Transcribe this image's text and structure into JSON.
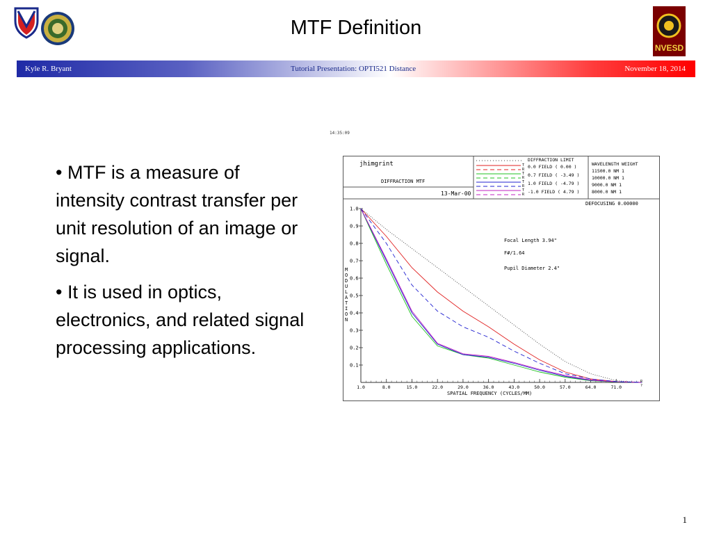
{
  "slide": {
    "title": "MTF Definition",
    "banner": {
      "left": "Kyle R. Bryant",
      "center": "Tutorial Presentation:  OPTI521 Distance",
      "right": "November 18, 2014"
    },
    "bullets": [
      "• MTF is a measure of intensity contrast transfer per unit resolution of an image or signal.",
      "• It is used in optics, electronics, and related signal processing applications."
    ],
    "page_number": "1",
    "logos": {
      "left_shield": "shield-logo",
      "left_seal": "seal-logo",
      "right": "NVESD"
    },
    "colors": {
      "banner_blue": "#1f2aa6",
      "banner_red": "#ff0000"
    }
  },
  "mtf_plot": {
    "timestamp": "14:35:09",
    "name": "jhimgrint",
    "subtitle": "DIFFRACTION MTF",
    "date": "13-Mar-00",
    "legend": {
      "diffraction_limit": "DIFFRACTION LIMIT",
      "entries": [
        {
          "field": "0.0  FIELD (  0.00 )",
          "color": "#e02020"
        },
        {
          "field": "0.7  FIELD ( -3.49 )",
          "color": "#20c020"
        },
        {
          "field": "1.0  FIELD ( -4.79 )",
          "color": "#2020d0"
        },
        {
          "field": "-1.0 FIELD (  4.79 )",
          "color": "#c020c0"
        }
      ],
      "tr_letters": [
        "T",
        "R"
      ]
    },
    "wavelength_table": {
      "header": "WAVELENGTH  WEIGHT",
      "rows": [
        "11500.0 NM       1",
        "10000.0 NM       1",
        "9000.0 NM       1",
        "8000.0 NM       1"
      ]
    },
    "defocusing": "DEFOCUSING  0.00000",
    "annotations": [
      "Focal Length 3.94\"",
      "F#/1.64",
      "Pupil Diameter 2.4\""
    ],
    "ylabel_letters": [
      "M",
      "O",
      "D",
      "U",
      "L",
      "A",
      "T",
      "I",
      "O",
      "N"
    ],
    "xlabel": "SPATIAL FREQUENCY (CYCLES/MM)",
    "right_edge_letters": [
      "R",
      "?"
    ]
  },
  "chart_data": {
    "type": "line",
    "xlabel": "SPATIAL FREQUENCY (CYCLES/MM)",
    "ylabel": "MODULATION",
    "x_ticks": [
      "1.0",
      "8.0",
      "15.0",
      "22.0",
      "29.0",
      "36.0",
      "43.0",
      "50.0",
      "57.0",
      "64.0",
      "71.0"
    ],
    "y_ticks": [
      "0.1",
      "0.2",
      "0.3",
      "0.4",
      "0.5",
      "0.6",
      "0.7",
      "0.8",
      "0.9",
      "1.0"
    ],
    "xlim": [
      1,
      78
    ],
    "ylim": [
      0,
      1.0
    ],
    "series": [
      {
        "name": "DIFFRACTION LIMIT",
        "color": "#404040",
        "dash": "1,2",
        "x": [
          1,
          8,
          15,
          22,
          29,
          36,
          43,
          50,
          57,
          64,
          71,
          78
        ],
        "y": [
          1.0,
          0.88,
          0.77,
          0.66,
          0.55,
          0.44,
          0.33,
          0.22,
          0.12,
          0.05,
          0.01,
          0.0
        ]
      },
      {
        "name": "0.0  FIELD (  0.00 ) T",
        "color": "#e02020",
        "dash": "",
        "x": [
          1,
          8,
          15,
          22,
          29,
          36,
          43,
          50,
          57,
          64,
          71,
          78
        ],
        "y": [
          1.0,
          0.84,
          0.66,
          0.52,
          0.41,
          0.32,
          0.22,
          0.13,
          0.06,
          0.02,
          0.005,
          0.0
        ]
      },
      {
        "name": "0.7  FIELD ( -3.49 ) T",
        "color": "#20c020",
        "dash": "",
        "x": [
          1,
          8,
          15,
          22,
          29,
          36,
          43,
          50,
          57,
          64,
          71,
          78
        ],
        "y": [
          1.0,
          0.68,
          0.38,
          0.21,
          0.16,
          0.14,
          0.1,
          0.06,
          0.03,
          0.01,
          0.003,
          0.0
        ]
      },
      {
        "name": "1.0  FIELD ( -4.79 ) T",
        "color": "#2020d0",
        "dash": "",
        "x": [
          1,
          8,
          15,
          22,
          29,
          36,
          43,
          50,
          57,
          64,
          71,
          78
        ],
        "y": [
          1.0,
          0.7,
          0.4,
          0.22,
          0.16,
          0.145,
          0.11,
          0.07,
          0.035,
          0.012,
          0.004,
          0.0
        ]
      },
      {
        "name": "-1.0 FIELD (  4.79 ) T",
        "color": "#c020c0",
        "dash": "",
        "x": [
          1,
          8,
          15,
          22,
          29,
          36,
          43,
          50,
          57,
          64,
          71,
          78
        ],
        "y": [
          1.0,
          0.71,
          0.41,
          0.225,
          0.165,
          0.15,
          0.115,
          0.075,
          0.04,
          0.014,
          0.004,
          0.0
        ]
      },
      {
        "name": "FIELD R (dashed)",
        "color": "#2020d0",
        "dash": "6,4",
        "x": [
          1,
          8,
          15,
          22,
          29,
          36,
          43,
          50,
          57,
          64,
          71,
          78
        ],
        "y": [
          1.0,
          0.8,
          0.56,
          0.41,
          0.32,
          0.26,
          0.18,
          0.11,
          0.05,
          0.02,
          0.005,
          0.0
        ]
      }
    ]
  }
}
